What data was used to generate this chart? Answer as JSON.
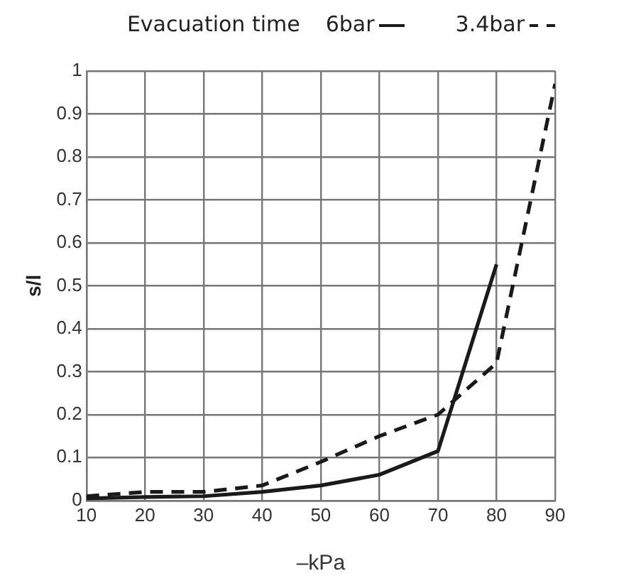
{
  "chart_data": {
    "type": "line",
    "title": "Evacuation time",
    "xlabel": "–kPa",
    "ylabel": "s/l",
    "x": [
      10,
      20,
      30,
      40,
      50,
      60,
      70,
      80,
      90
    ],
    "xlim": [
      10,
      90
    ],
    "xticks": [
      10,
      20,
      30,
      40,
      50,
      60,
      70,
      80,
      90
    ],
    "ylim": [
      0,
      1
    ],
    "yticks": [
      0,
      0.1,
      0.2,
      0.3,
      0.4,
      0.5,
      0.6,
      0.7,
      0.8,
      0.9,
      1
    ],
    "grid": true,
    "legend": "top",
    "marker": "none",
    "series": [
      {
        "name": "6bar",
        "color": "#1a1a1a",
        "line_style": "solid",
        "values": [
          0.005,
          0.008,
          0.01,
          0.02,
          0.035,
          0.06,
          0.115,
          0.55,
          null
        ]
      },
      {
        "name": "3.4bar",
        "color": "#1a1a1a",
        "line_style": "dashed",
        "values": [
          0.01,
          0.02,
          0.02,
          0.035,
          0.09,
          0.15,
          0.2,
          0.32,
          0.97
        ]
      }
    ]
  }
}
